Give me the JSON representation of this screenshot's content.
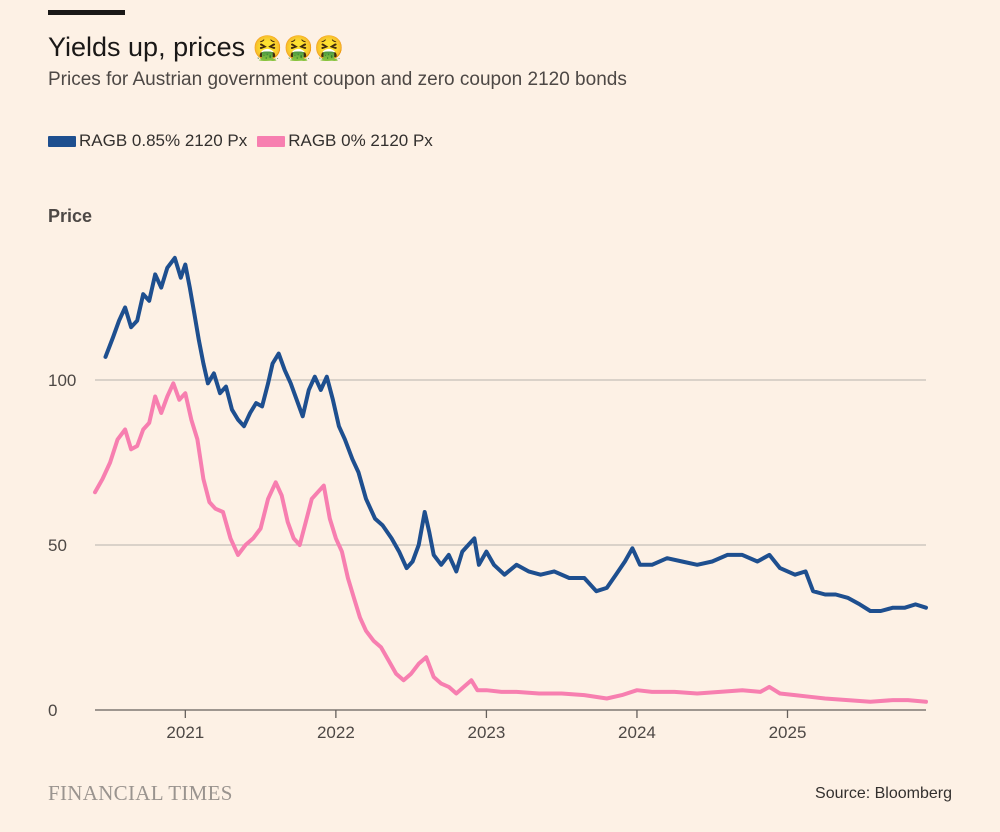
{
  "title": "Yields up, prices",
  "title_emoji": "🤮🤮🤮",
  "subtitle": "Prices for Austrian government coupon and zero coupon 2120 bonds",
  "brand": "FINANCIAL TIMES",
  "source": "Source: Bloomberg",
  "colors": {
    "background": "#fdf1e5",
    "series_coupon": "#1e4f8f",
    "series_zero": "#f77fb0",
    "gridline": "#b8b3ad"
  },
  "chart_data": {
    "type": "line",
    "title": "Yields up, prices 🤮🤮🤮",
    "subtitle": "Prices for Austrian government coupon and zero coupon 2120 bonds",
    "xlabel": "",
    "ylabel": "Price",
    "ylim": [
      0,
      142
    ],
    "xlim": [
      2020.4,
      2025.92
    ],
    "y_ticks": [
      0,
      50,
      100
    ],
    "x_ticks": [
      2021,
      2022,
      2023,
      2024,
      2025
    ],
    "grid": true,
    "legend": "top-left",
    "series": [
      {
        "name": "RAGB 0.85% 2120 Px",
        "color": "#1e4f8f",
        "points": [
          [
            2020.47,
            107
          ],
          [
            2020.52,
            113
          ],
          [
            2020.56,
            118
          ],
          [
            2020.6,
            122
          ],
          [
            2020.64,
            116
          ],
          [
            2020.68,
            118
          ],
          [
            2020.72,
            126
          ],
          [
            2020.76,
            124
          ],
          [
            2020.8,
            132
          ],
          [
            2020.84,
            128
          ],
          [
            2020.88,
            134
          ],
          [
            2020.93,
            137
          ],
          [
            2020.97,
            131
          ],
          [
            2021.0,
            135
          ],
          [
            2021.03,
            128
          ],
          [
            2021.06,
            120
          ],
          [
            2021.09,
            112
          ],
          [
            2021.12,
            105
          ],
          [
            2021.15,
            99
          ],
          [
            2021.19,
            102
          ],
          [
            2021.23,
            96
          ],
          [
            2021.27,
            98
          ],
          [
            2021.31,
            91
          ],
          [
            2021.35,
            88
          ],
          [
            2021.39,
            86
          ],
          [
            2021.43,
            90
          ],
          [
            2021.47,
            93
          ],
          [
            2021.51,
            92
          ],
          [
            2021.55,
            99
          ],
          [
            2021.58,
            105
          ],
          [
            2021.62,
            108
          ],
          [
            2021.66,
            103
          ],
          [
            2021.7,
            99
          ],
          [
            2021.74,
            94
          ],
          [
            2021.78,
            89
          ],
          [
            2021.82,
            97
          ],
          [
            2021.86,
            101
          ],
          [
            2021.9,
            97
          ],
          [
            2021.94,
            101
          ],
          [
            2021.98,
            94
          ],
          [
            2022.02,
            86
          ],
          [
            2022.06,
            82
          ],
          [
            2022.11,
            76
          ],
          [
            2022.15,
            72
          ],
          [
            2022.2,
            64
          ],
          [
            2022.26,
            58
          ],
          [
            2022.31,
            56
          ],
          [
            2022.37,
            52
          ],
          [
            2022.42,
            48
          ],
          [
            2022.47,
            43
          ],
          [
            2022.51,
            45
          ],
          [
            2022.55,
            50
          ],
          [
            2022.59,
            60
          ],
          [
            2022.62,
            54
          ],
          [
            2022.65,
            47
          ],
          [
            2022.7,
            44
          ],
          [
            2022.75,
            47
          ],
          [
            2022.8,
            42
          ],
          [
            2022.84,
            48
          ],
          [
            2022.88,
            50
          ],
          [
            2022.92,
            52
          ],
          [
            2022.95,
            44
          ],
          [
            2023.0,
            48
          ],
          [
            2023.05,
            44
          ],
          [
            2023.12,
            41
          ],
          [
            2023.2,
            44
          ],
          [
            2023.28,
            42
          ],
          [
            2023.36,
            41
          ],
          [
            2023.45,
            42
          ],
          [
            2023.55,
            40
          ],
          [
            2023.65,
            40
          ],
          [
            2023.73,
            36
          ],
          [
            2023.8,
            37
          ],
          [
            2023.86,
            41
          ],
          [
            2023.92,
            45
          ],
          [
            2023.97,
            49
          ],
          [
            2024.02,
            44
          ],
          [
            2024.1,
            44
          ],
          [
            2024.2,
            46
          ],
          [
            2024.3,
            45
          ],
          [
            2024.4,
            44
          ],
          [
            2024.5,
            45
          ],
          [
            2024.6,
            47
          ],
          [
            2024.7,
            47
          ],
          [
            2024.8,
            45
          ],
          [
            2024.88,
            47
          ],
          [
            2024.95,
            43
          ],
          [
            2025.05,
            41
          ],
          [
            2025.12,
            42
          ],
          [
            2025.17,
            36
          ],
          [
            2025.25,
            35
          ],
          [
            2025.32,
            35
          ],
          [
            2025.4,
            34
          ],
          [
            2025.48,
            32
          ],
          [
            2025.55,
            30
          ],
          [
            2025.62,
            30
          ],
          [
            2025.7,
            31
          ],
          [
            2025.78,
            31
          ],
          [
            2025.85,
            32
          ],
          [
            2025.92,
            31
          ]
        ]
      },
      {
        "name": "RAGB 0% 2120 Px",
        "color": "#f77fb0",
        "points": [
          [
            2020.4,
            66
          ],
          [
            2020.45,
            70
          ],
          [
            2020.5,
            75
          ],
          [
            2020.55,
            82
          ],
          [
            2020.6,
            85
          ],
          [
            2020.64,
            79
          ],
          [
            2020.68,
            80
          ],
          [
            2020.72,
            85
          ],
          [
            2020.76,
            87
          ],
          [
            2020.8,
            95
          ],
          [
            2020.84,
            90
          ],
          [
            2020.88,
            95
          ],
          [
            2020.92,
            99
          ],
          [
            2020.96,
            94
          ],
          [
            2021.0,
            96
          ],
          [
            2021.04,
            88
          ],
          [
            2021.08,
            82
          ],
          [
            2021.12,
            70
          ],
          [
            2021.16,
            63
          ],
          [
            2021.2,
            61
          ],
          [
            2021.25,
            60
          ],
          [
            2021.3,
            52
          ],
          [
            2021.35,
            47
          ],
          [
            2021.4,
            50
          ],
          [
            2021.45,
            52
          ],
          [
            2021.5,
            55
          ],
          [
            2021.55,
            64
          ],
          [
            2021.6,
            69
          ],
          [
            2021.64,
            65
          ],
          [
            2021.68,
            57
          ],
          [
            2021.72,
            52
          ],
          [
            2021.76,
            50
          ],
          [
            2021.8,
            57
          ],
          [
            2021.84,
            64
          ],
          [
            2021.88,
            66
          ],
          [
            2021.92,
            68
          ],
          [
            2021.96,
            58
          ],
          [
            2022.0,
            52
          ],
          [
            2022.04,
            48
          ],
          [
            2022.08,
            40
          ],
          [
            2022.12,
            34
          ],
          [
            2022.16,
            28
          ],
          [
            2022.2,
            24
          ],
          [
            2022.25,
            21
          ],
          [
            2022.3,
            19
          ],
          [
            2022.35,
            15
          ],
          [
            2022.4,
            11
          ],
          [
            2022.45,
            9
          ],
          [
            2022.5,
            11
          ],
          [
            2022.55,
            14
          ],
          [
            2022.6,
            16
          ],
          [
            2022.65,
            10
          ],
          [
            2022.7,
            8
          ],
          [
            2022.75,
            7
          ],
          [
            2022.8,
            5
          ],
          [
            2022.85,
            7
          ],
          [
            2022.9,
            9
          ],
          [
            2022.94,
            6
          ],
          [
            2023.0,
            6
          ],
          [
            2023.1,
            5.5
          ],
          [
            2023.2,
            5.5
          ],
          [
            2023.35,
            5
          ],
          [
            2023.5,
            5
          ],
          [
            2023.65,
            4.5
          ],
          [
            2023.8,
            3.5
          ],
          [
            2023.9,
            4.5
          ],
          [
            2024.0,
            6
          ],
          [
            2024.1,
            5.5
          ],
          [
            2024.25,
            5.5
          ],
          [
            2024.4,
            5
          ],
          [
            2024.55,
            5.5
          ],
          [
            2024.7,
            6
          ],
          [
            2024.82,
            5.5
          ],
          [
            2024.88,
            7
          ],
          [
            2024.95,
            5
          ],
          [
            2025.05,
            4.5
          ],
          [
            2025.15,
            4
          ],
          [
            2025.25,
            3.5
          ],
          [
            2025.4,
            3
          ],
          [
            2025.55,
            2.5
          ],
          [
            2025.7,
            3
          ],
          [
            2025.8,
            3
          ],
          [
            2025.92,
            2.5
          ]
        ]
      }
    ]
  }
}
